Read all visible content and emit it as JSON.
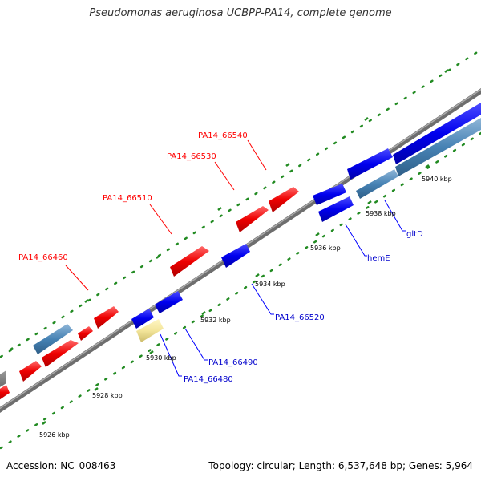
{
  "title": "Pseudomonas aeruginosa UCBPP-PA14, complete genome",
  "footer": {
    "accession": "Accession: NC_008463",
    "summary": "Topology: circular; Length: 6,537,648 bp; Genes: 5,964"
  },
  "colors": {
    "forward": "#ff0000",
    "reverse": "#0000ff",
    "operon": "#4682b4",
    "hypothetical": "#f3e59a",
    "backbone": "#808080",
    "tick": "#228b22"
  },
  "scale": {
    "tick_labels": [
      "5926 kbp",
      "5928 kbp",
      "5930 kbp",
      "5932 kbp",
      "5934 kbp",
      "5936 kbp",
      "5938 kbp",
      "5940 kbp"
    ]
  },
  "gene_labels": {
    "forward": [
      "PA14_66460",
      "PA14_66510",
      "PA14_66530",
      "PA14_66540"
    ],
    "reverse": [
      "PA14_66480",
      "PA14_66490",
      "PA14_66520",
      "hemE",
      "gltD"
    ]
  }
}
